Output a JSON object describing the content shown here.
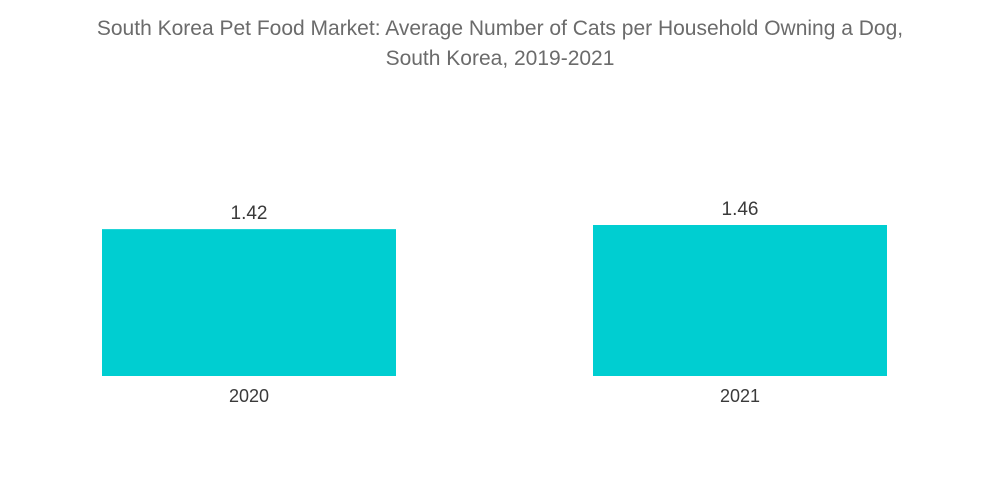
{
  "chart_data": {
    "type": "bar",
    "title_line1": "South Korea Pet Food Market: Average Number of Cats per Household Owning a Dog,",
    "title_line2": "South Korea, 2019-2021",
    "categories": [
      "2020",
      "2021"
    ],
    "values": [
      1.42,
      1.46
    ],
    "value_labels": [
      "1.42",
      "1.46"
    ],
    "xlabel": "",
    "ylabel": "",
    "ylim": [
      0,
      1.46
    ],
    "grid": false,
    "legend": "none",
    "bar_color": "#00CED1"
  }
}
